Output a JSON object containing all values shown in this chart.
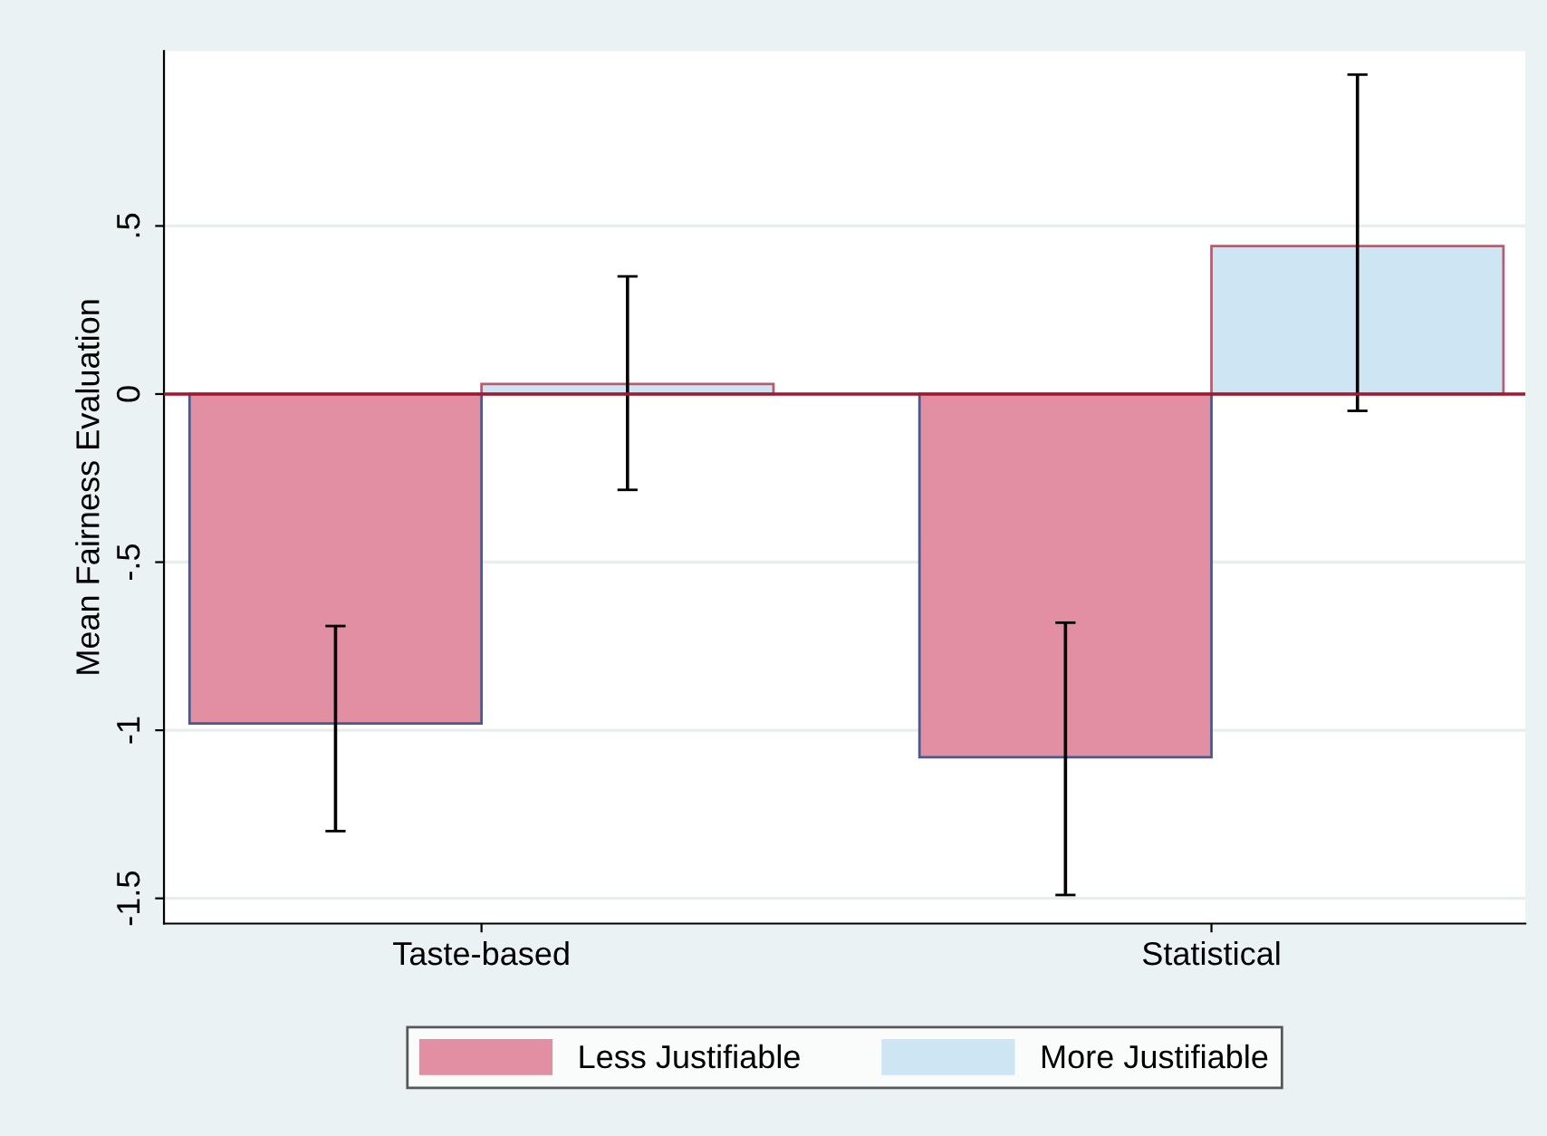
{
  "chart_data": {
    "type": "bar",
    "ylabel": "Mean Fairness Evaluation",
    "categories": [
      "Taste-based",
      "Statistical"
    ],
    "series": [
      {
        "name": "Less Justifiable",
        "color": "#e28fa3",
        "values": [
          -0.98,
          -1.08
        ],
        "errors": [
          [
            -1.3,
            -0.69
          ],
          [
            -1.49,
            -0.68
          ]
        ]
      },
      {
        "name": "More Justifiable",
        "color": "#cee5f4",
        "values": [
          0.03,
          0.44
        ],
        "errors": [
          [
            -0.285,
            0.35
          ],
          [
            -0.05,
            0.95
          ]
        ]
      }
    ],
    "ylim": [
      -1.575,
      1.02
    ],
    "yticks": [
      {
        "value": -1.5,
        "label": "-1.5"
      },
      -1,
      {
        "value": -0.5,
        "label": "-.5"
      },
      0,
      {
        "value": 0.5,
        "label": ".5"
      }
    ],
    "ref_lines": [
      {
        "axis": "y",
        "value": 0,
        "color": "#a3172f"
      }
    ],
    "grid": "y",
    "legend": "bottom"
  }
}
